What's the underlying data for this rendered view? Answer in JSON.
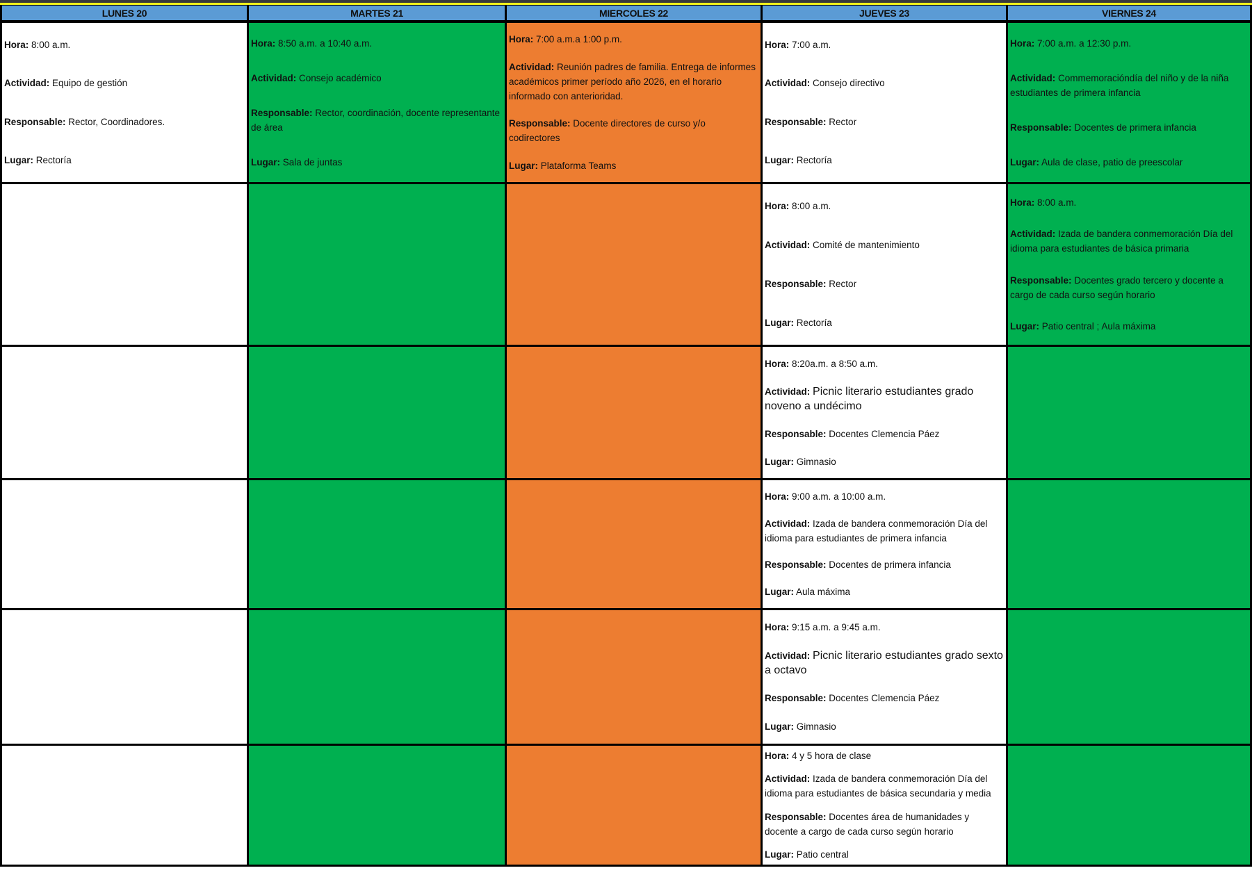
{
  "labels": {
    "hora": "Hora:",
    "actividad": "Actividad:",
    "responsable": "Responsable:",
    "lugar": "Lugar:"
  },
  "colors": {
    "header": "#5b9bd5",
    "white": "#ffffff",
    "green": "#00b050",
    "orange": "#ed7d31",
    "border": "#000000"
  },
  "days": [
    {
      "header": "LUNES 20",
      "color": "#ffffff"
    },
    {
      "header": "MARTES 21",
      "color": "#00b050"
    },
    {
      "header": "MIERCOLES 22",
      "color": "#ed7d31"
    },
    {
      "header": "JUEVES 23",
      "color": "#ffffff"
    },
    {
      "header": "VIERNES 24",
      "color": "#00b050"
    }
  ],
  "rows": [
    [
      {
        "hora": "8:00 a.m.",
        "actividad": "Equipo de gestión",
        "responsable": "Rector, Coordinadores.",
        "lugar": "Rectoría"
      },
      {
        "hora": "8:50 a.m. a 10:40 a.m.",
        "actividad": "Consejo académico",
        "responsable": "Rector, coordinación, docente representante de área",
        "lugar": "Sala de juntas"
      },
      {
        "hora": "7:00 a.m.a 1:00 p.m.",
        "actividad": "Reunión padres de familia. Entrega de informes académicos primer período año 2026, en el horario informado con anterioridad.",
        "responsable": "Docente directores de curso y/o codirectores",
        "lugar": "Plataforma Teams"
      },
      {
        "hora": "7:00  a.m.",
        "actividad": "Consejo directivo",
        "responsable": "Rector",
        "lugar": "Rectoría"
      },
      {
        "hora": "7:00 a.m. a 12:30  p.m.",
        "actividad": "Commemoracióndía del niño y de la niña estudiantes de primera infancia",
        "responsable": "Docentes de primera infancia",
        "lugar": "Aula de clase, patio de preescolar"
      }
    ],
    [
      null,
      null,
      null,
      {
        "hora": "8:00  a.m.",
        "actividad": "Comité de mantenimiento",
        "responsable": "Rector",
        "lugar": "Rectoría"
      },
      {
        "hora": "8:00 a.m.",
        "actividad": "Izada de bandera conmemoración Día del idioma para estudiantes de básica primaria",
        "responsable": "Docentes grado tercero y docente a cargo de cada curso según horario",
        "lugar": "Patio central ; Aula máxima"
      }
    ],
    [
      null,
      null,
      null,
      {
        "hora": "8:20a.m. a 8:50 a.m.",
        "actividad": "Picnic literario estudiantes grado noveno a undécimo",
        "responsable": "Docentes Clemencia Páez",
        "lugar": "Gimnasio",
        "big": true
      },
      null
    ],
    [
      null,
      null,
      null,
      {
        "hora": "9:00 a.m. a 10:00 a.m.",
        "actividad": "Izada de bandera conmemoración Día del idioma  para estudiantes de primera infancia",
        "responsable": "Docentes de primera infancia",
        "lugar": "Aula máxima"
      },
      null
    ],
    [
      null,
      null,
      null,
      {
        "hora": "9:15 a.m. a  9:45 a.m.",
        "actividad": "Picnic literario estudiantes grado sexto a octavo",
        "responsable": "Docentes Clemencia Páez",
        "lugar": "Gimnasio",
        "big": true
      },
      null
    ],
    [
      null,
      null,
      null,
      {
        "hora": "4 y 5 hora de clase",
        "actividad": "Izada de bandera conmemoración Día del idioma para estudiantes de básica secundaria y media",
        "responsable": "Docentes área de humanidades y docente a cargo de cada curso según horario",
        "lugar": "Patio central"
      },
      null
    ]
  ]
}
